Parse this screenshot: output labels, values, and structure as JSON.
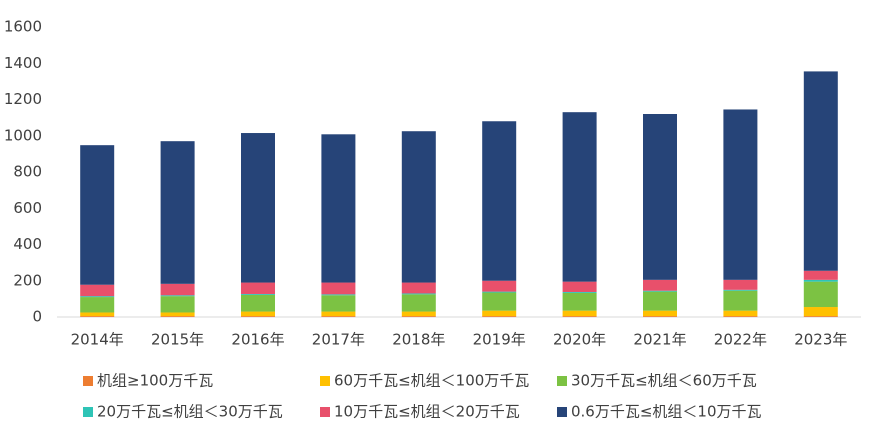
{
  "chart_data": {
    "type": "stacked_bar",
    "categories": [
      "2014年",
      "2015年",
      "2016年",
      "2017年",
      "2018年",
      "2019年",
      "2020年",
      "2021年",
      "2022年",
      "2023年"
    ],
    "series": [
      {
        "name": "机组≥100万千瓦",
        "color": "#ed7d31",
        "values": [
          5,
          5,
          5,
          5,
          5,
          5,
          5,
          5,
          5,
          5
        ]
      },
      {
        "name": "60万千瓦≤机组＜100万千瓦",
        "color": "#ffc000",
        "values": [
          20,
          20,
          25,
          25,
          25,
          30,
          30,
          30,
          30,
          50
        ]
      },
      {
        "name": "30万千瓦≤机组＜60万千瓦",
        "color": "#7cc243",
        "values": [
          85,
          90,
          92,
          90,
          95,
          100,
          98,
          105,
          110,
          140
        ]
      },
      {
        "name": "20万千瓦≤机组＜30万千瓦",
        "color": "#2ec4b6",
        "values": [
          5,
          5,
          5,
          5,
          5,
          5,
          5,
          5,
          5,
          10
        ]
      },
      {
        "name": "10万千瓦≤机组＜20万千瓦",
        "color": "#e8506b",
        "values": [
          63,
          63,
          63,
          65,
          60,
          60,
          57,
          60,
          55,
          50
        ]
      },
      {
        "name": "0.6万千瓦≤机组＜10万千瓦",
        "color": "#264478",
        "values": [
          770,
          787,
          825,
          818,
          835,
          880,
          935,
          915,
          940,
          1100
        ]
      }
    ],
    "ylim": [
      0,
      1600
    ],
    "yticks": [
      0,
      200,
      400,
      600,
      800,
      1000,
      1200,
      1400,
      1600
    ]
  }
}
